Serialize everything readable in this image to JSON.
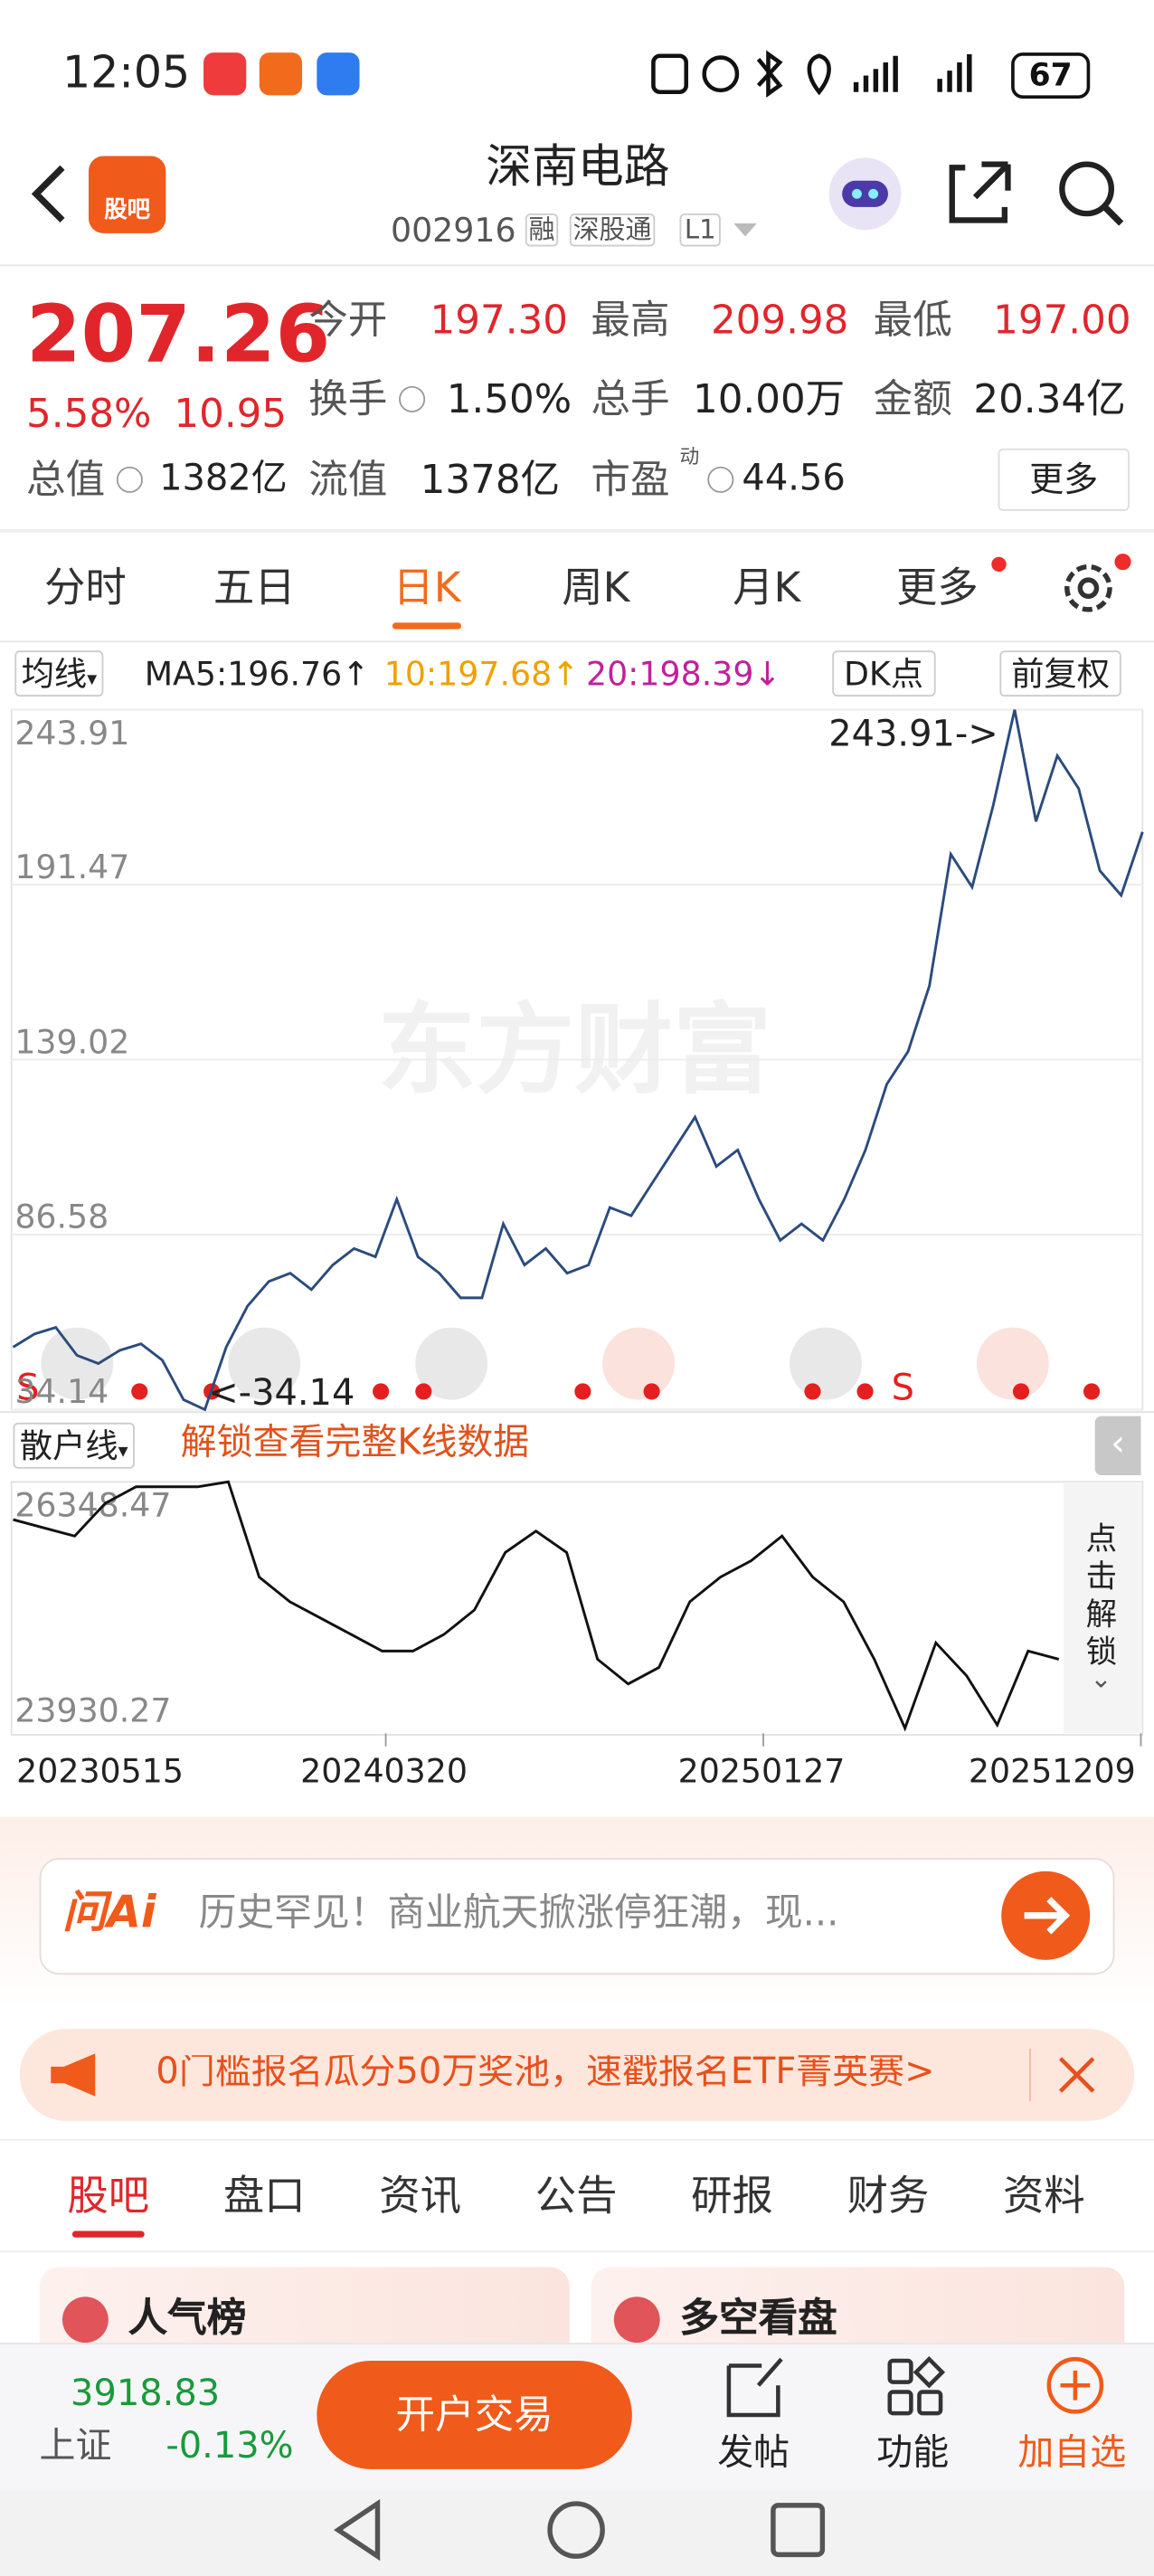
{
  "status_bar": {
    "time": "12:05",
    "battery": "67"
  },
  "header": {
    "title": "深南电路",
    "code": "002916",
    "tags": [
      "融",
      "深股通",
      "L1"
    ],
    "logo": "股吧"
  },
  "quote": {
    "price": "207.26",
    "change_pct": "5.58%",
    "change": "10.95",
    "fields": [
      {
        "label": "今开",
        "value": "197.30"
      },
      {
        "label": "最高",
        "value": "209.98"
      },
      {
        "label": "最低",
        "value": "197.00"
      },
      {
        "label": "换手",
        "value": "1.50%"
      },
      {
        "label": "总手",
        "value": "10.00万"
      },
      {
        "label": "金额",
        "value": "20.34亿"
      },
      {
        "label": "总值",
        "value": "1382亿"
      },
      {
        "label": "流值",
        "value": "1378亿"
      },
      {
        "label": "市盈",
        "value": "44.56",
        "sup": "动"
      }
    ],
    "more": "更多"
  },
  "tabs": [
    "分时",
    "五日",
    "日K",
    "周K",
    "月K",
    "更多"
  ],
  "indicator_bar": {
    "selector": "均线",
    "ma5": "MA5:196.76↑",
    "ma10": "10:197.68↑",
    "ma20": "20:198.39↓",
    "dk": "DK点",
    "adjust": "前复权"
  },
  "price_chart": {
    "type": "line",
    "watermark": "东方财富",
    "color": "#2b4b7e",
    "grid": true,
    "ylim": [
      34.14,
      243.91
    ],
    "yticks": [
      243.91,
      191.47,
      139.02,
      86.58,
      34.14
    ],
    "max_label": "243.91->",
    "min_label": "<-34.14",
    "signals": [
      "S",
      "S"
    ],
    "values": [
      52.85,
      56.79,
      58.76,
      50.39,
      47.93,
      51.87,
      53.84,
      48.91,
      37.09,
      34.14,
      52.85,
      65.16,
      72.55,
      75.01,
      70.09,
      77.47,
      82.4,
      79.93,
      97.17,
      79.93,
      75.01,
      67.62,
      67.62,
      89.78,
      77.47,
      82.4,
      75.01,
      77.47,
      94.71,
      92.24,
      102.09,
      111.94,
      121.79,
      107.02,
      111.94,
      97.17,
      84.86,
      89.78,
      84.86,
      97.17,
      111.94,
      131.64,
      141.49,
      161.18,
      200.58,
      190.73,
      215.35,
      243.91,
      210.43,
      230.12,
      220.27,
      195.65,
      188.27,
      207.26
    ]
  },
  "sentiment_chart": {
    "type": "line",
    "selector": "散户线",
    "unlock": "解锁查看完整K线数据",
    "side_label": "点击解锁",
    "color": "#111111",
    "ylim": [
      23930.27,
      26348.47
    ],
    "yticks": [
      26348.47,
      23930.27
    ],
    "values": [
      25977.7,
      25897.1,
      25816.5,
      26138.9,
      26300.1,
      26300.1,
      26300.1,
      26348.47,
      25413.5,
      25171.7,
      25010.5,
      24849.2,
      24688,
      24688,
      24849.2,
      25091.1,
      25655.3,
      25864.9,
      25655.3,
      24607.5,
      24365.6,
      24526.8,
      25171.7,
      25413.5,
      25574.7,
      25816.5,
      25413.5,
      25171.7,
      24607.5,
      23930.27,
      24768.6,
      24446.2,
      23962.6,
      24688,
      24607.5
    ]
  },
  "x_dates": [
    "20230515",
    "20240320",
    "20250127",
    "20251209"
  ],
  "ai_bar": {
    "logo": "问Ai",
    "text": "历史罕见！商业航天掀涨停狂潮，现..."
  },
  "banner": "0门槛报名瓜分50万奖池，速戳报名ETF菁英赛>",
  "section_tabs": [
    "股吧",
    "盘口",
    "资讯",
    "公告",
    "研报",
    "财务",
    "资料"
  ],
  "cards": [
    "人气榜",
    "多空看盘"
  ],
  "bottom_bar": {
    "index_value": "3918.83",
    "index_name": "上证",
    "index_change": "-0.13%",
    "trade": "开户交易",
    "actions": [
      "发帖",
      "功能",
      "加自选"
    ]
  }
}
